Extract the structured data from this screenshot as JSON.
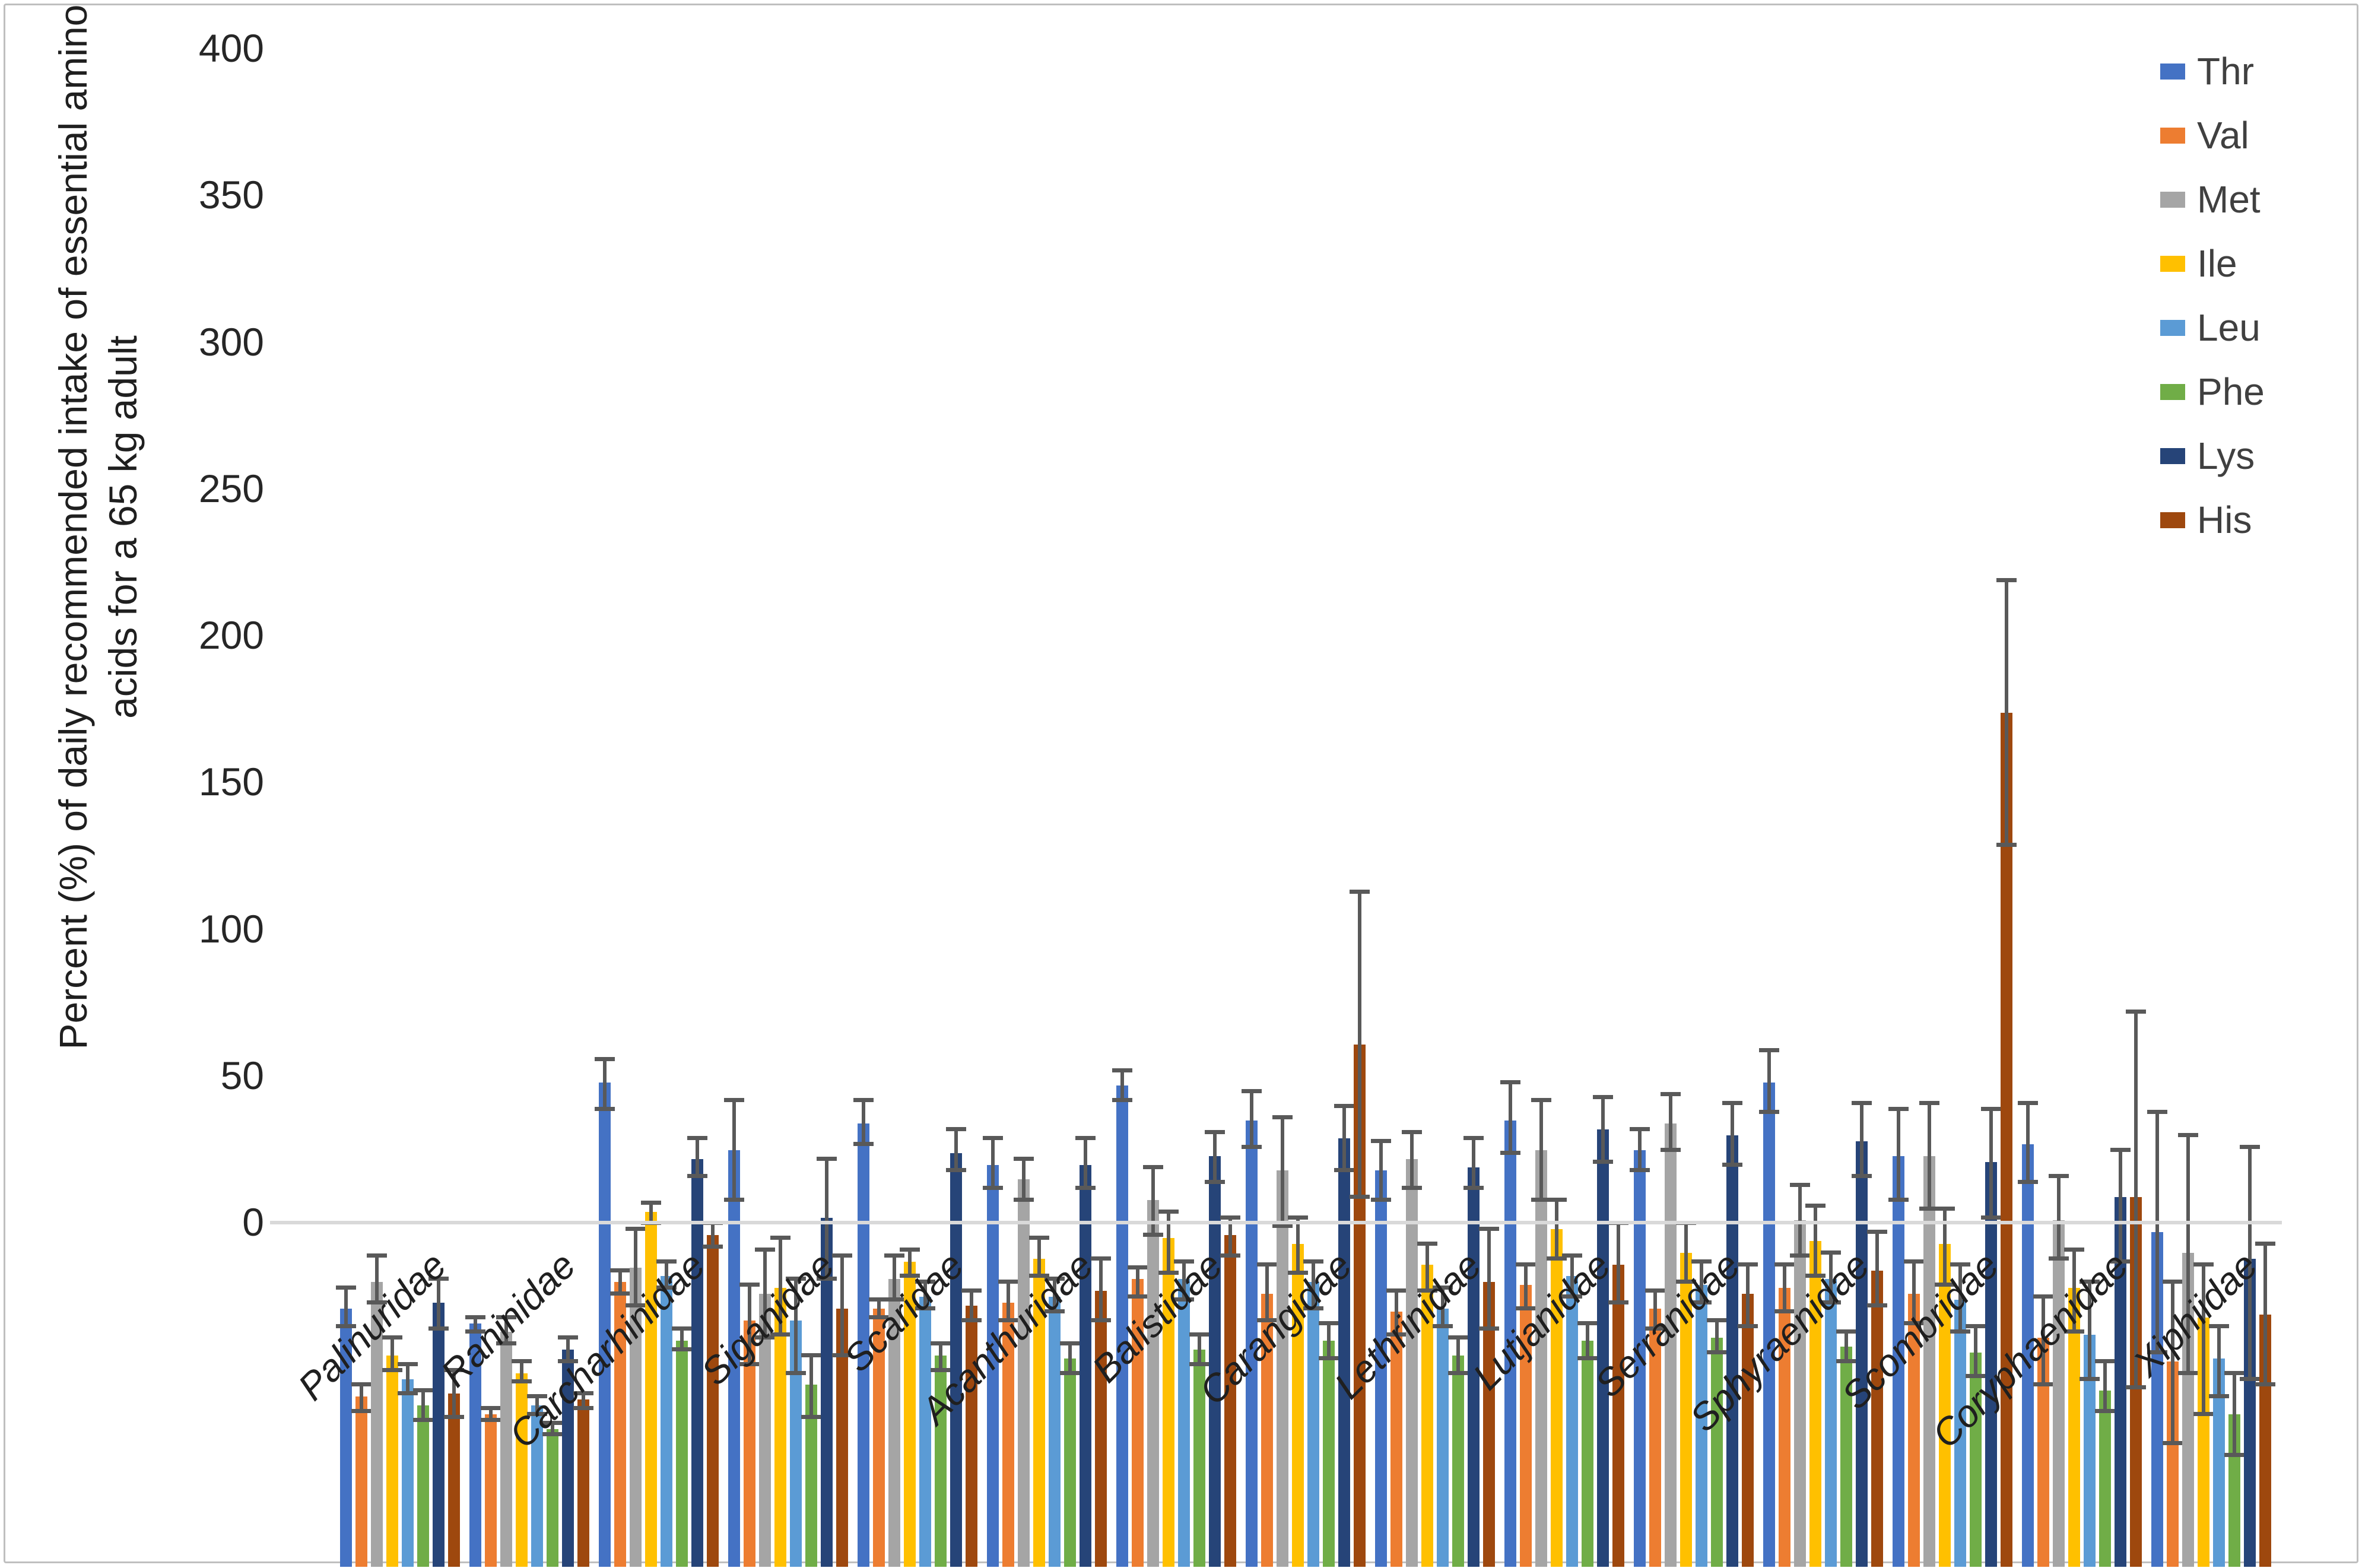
{
  "chart_data": {
    "type": "bar",
    "title": "",
    "ylabel_line1": "Percent (%) of daily recommended intake of essential amino",
    "ylabel_line2": "acids for a 65 kg adult",
    "xlabel": "",
    "ylim": [
      0,
      400
    ],
    "y_ticks": [
      "0",
      "50",
      "100",
      "150",
      "200",
      "250",
      "300",
      "350",
      "400"
    ],
    "grid": "off",
    "legend_position": "top-right",
    "bar_units_per_group": 8,
    "error_bars": true,
    "colors": {
      "error_bar": "#595959",
      "axis_line": "#d9d9d9",
      "tick_text": "#262626",
      "label_text": "#1f1f1f"
    },
    "categories": [
      "Palinuridae",
      "Raninidae",
      "Carcharhinidae",
      "Siganidae",
      "Scaridae",
      "Acanthuridae",
      "Balistidae",
      "Carangidae",
      "Lethrinidae",
      "Lutjanidae",
      "Serranidae",
      "Sphyraenidae",
      "Scombridae",
      "Coryphaenidae",
      "Xiphiidae"
    ],
    "series": [
      {
        "name": "Thr",
        "color": "#4472C4",
        "values": [
          88,
          83,
          165,
          142,
          151,
          137,
          164,
          152,
          135,
          152,
          142,
          165,
          140,
          144,
          114
        ],
        "err_low": [
          82,
          80,
          156,
          125,
          144,
          129,
          159,
          143,
          125,
          141,
          135,
          155,
          125,
          131,
          73
        ],
        "err_high": [
          95,
          85,
          173,
          159,
          159,
          146,
          169,
          162,
          145,
          165,
          149,
          176,
          156,
          158,
          155
        ]
      },
      {
        "name": "Val",
        "color": "#ED7D31",
        "values": [
          58,
          52,
          97,
          84,
          88,
          90,
          98,
          93,
          87,
          96,
          88,
          95,
          93,
          78,
          70
        ],
        "err_low": [
          53,
          50,
          93,
          69,
          85,
          84,
          92,
          84,
          79,
          88,
          81,
          87,
          83,
          62,
          42
        ],
        "err_high": [
          62,
          54,
          101,
          96,
          91,
          97,
          102,
          103,
          94,
          103,
          94,
          103,
          104,
          92,
          97
        ]
      },
      {
        "name": "Met",
        "color": "#A5A5A5",
        "values": [
          97,
          80,
          102,
          93,
          98,
          132,
          125,
          135,
          139,
          142,
          151,
          118,
          140,
          118,
          107
        ],
        "err_low": [
          90,
          76,
          89,
          78,
          91,
          125,
          113,
          116,
          129,
          125,
          142,
          106,
          122,
          105,
          66
        ],
        "err_high": [
          106,
          85,
          115,
          108,
          106,
          139,
          136,
          153,
          148,
          159,
          161,
          130,
          158,
          133,
          147
        ]
      },
      {
        "name": "Ile",
        "color": "#FFC000",
        "values": [
          72,
          66,
          121,
          95,
          104,
          105,
          112,
          110,
          103,
          115,
          107,
          111,
          110,
          95,
          85
        ],
        "err_low": [
          67,
          63,
          117,
          79,
          99,
          99,
          100,
          100,
          94,
          105,
          97,
          99,
          96,
          80,
          52
        ],
        "err_high": [
          78,
          70,
          124,
          112,
          108,
          112,
          121,
          119,
          110,
          125,
          117,
          123,
          122,
          108,
          103
        ]
      },
      {
        "name": "Leu",
        "color": "#5B9BD5",
        "values": [
          64,
          55,
          99,
          84,
          92,
          92,
          98,
          97,
          88,
          99,
          96,
          98,
          91,
          79,
          71
        ],
        "err_low": [
          59,
          52,
          95,
          66,
          88,
          87,
          91,
          88,
          82,
          92,
          90,
          90,
          80,
          64,
          58
        ],
        "err_high": [
          69,
          58,
          104,
          98,
          97,
          98,
          104,
          104,
          95,
          106,
          104,
          107,
          103,
          97,
          82
        ]
      },
      {
        "name": "Phe",
        "color": "#70AD47",
        "values": [
          55,
          47,
          77,
          62,
          72,
          71,
          74,
          77,
          72,
          77,
          78,
          75,
          73,
          60,
          52
        ],
        "err_low": [
          50,
          45,
          74,
          51,
          67,
          66,
          69,
          71,
          66,
          71,
          73,
          70,
          65,
          53,
          38
        ],
        "err_high": [
          60,
          49,
          81,
          72,
          76,
          76,
          79,
          83,
          78,
          83,
          84,
          80,
          82,
          70,
          66
        ]
      },
      {
        "name": "Lys",
        "color": "#264478",
        "values": [
          90,
          74,
          139,
          119,
          141,
          137,
          140,
          146,
          136,
          149,
          147,
          145,
          138,
          126,
          105
        ],
        "err_low": [
          81,
          70,
          133,
          98,
          135,
          129,
          131,
          135,
          129,
          138,
          137,
          133,
          119,
          104,
          64
        ],
        "err_high": [
          98,
          78,
          146,
          139,
          149,
          146,
          148,
          157,
          146,
          160,
          158,
          158,
          156,
          142,
          143
        ]
      },
      {
        "name": "His",
        "color": "#9E480E",
        "values": [
          59,
          57,
          113,
          88,
          89,
          94,
          113,
          178,
          97,
          103,
          93,
          101,
          291,
          126,
          86
        ],
        "err_low": [
          51,
          54,
          109,
          72,
          84,
          84,
          106,
          126,
          81,
          90,
          82,
          89,
          246,
          61,
          62
        ],
        "err_high": [
          67,
          59,
          117,
          106,
          94,
          105,
          119,
          230,
          115,
          117,
          103,
          114,
          336,
          189,
          110
        ]
      }
    ]
  }
}
